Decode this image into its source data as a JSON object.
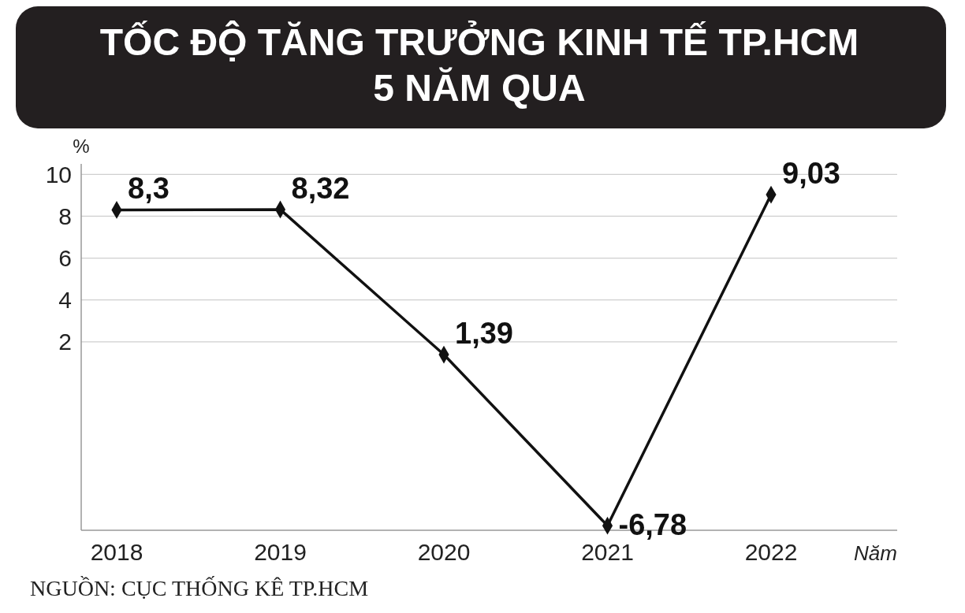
{
  "chart_data": {
    "type": "line",
    "title": "TỐC ĐỘ TĂNG TRƯỞNG KINH TẾ TP.HCM\n5 NĂM QUA",
    "ylabel": "%",
    "xlabel": "Năm",
    "categories": [
      "2018",
      "2019",
      "2020",
      "2021",
      "2022"
    ],
    "series": [
      {
        "color": "#111111",
        "values": [
          8.3,
          8.32,
          1.39,
          -6.78,
          9.03
        ],
        "value_labels": [
          "8,3",
          "8,32",
          "1,39",
          "-6,78",
          "9,03"
        ]
      }
    ],
    "ylim": [
      -7,
      10.5
    ],
    "yticks": [
      2,
      4,
      6,
      8,
      10
    ],
    "grid": "y",
    "marker": "diamond",
    "line_style": "solid",
    "annotations": [
      "NGUỒN: CỤC THỐNG KÊ TP.HCM"
    ]
  }
}
